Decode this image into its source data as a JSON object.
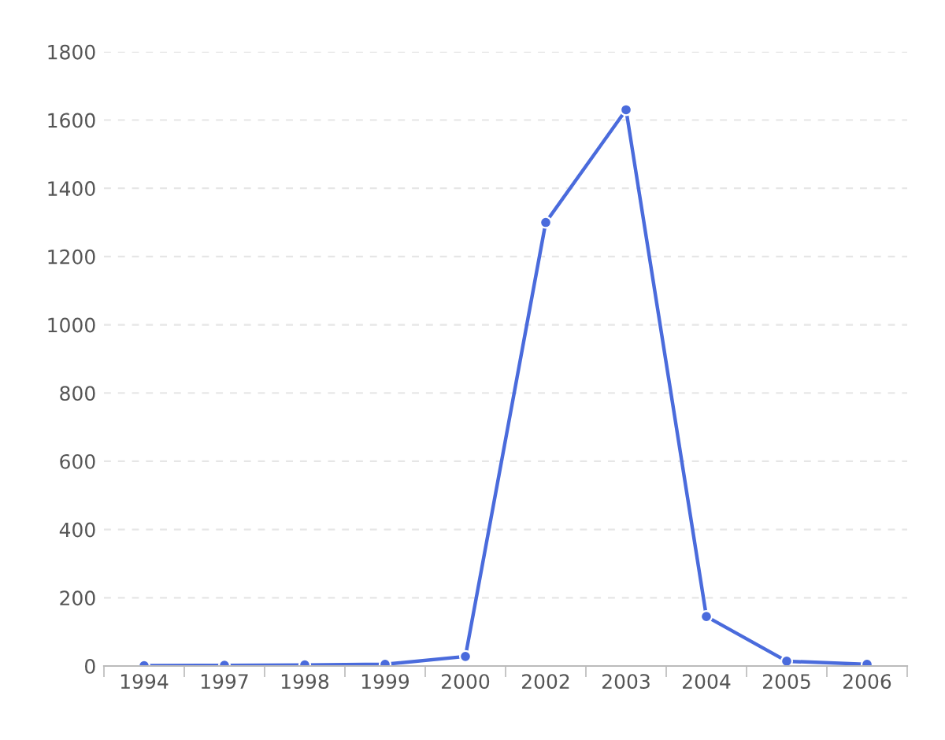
{
  "chart_data": {
    "type": "line",
    "categories": [
      "1994",
      "1997",
      "1998",
      "1999",
      "2000",
      "2002",
      "2003",
      "2004",
      "2005",
      "2006"
    ],
    "series": [
      {
        "color": "#4a6bdc",
        "values": [
          1,
          2,
          3,
          5,
          28,
          1300,
          1630,
          145,
          14,
          5
        ]
      }
    ],
    "ylim": [
      0,
      1800
    ],
    "yticks": [
      0,
      200,
      400,
      600,
      800,
      1000,
      1200,
      1400,
      1600,
      1800
    ],
    "grid": "y",
    "marker": "circle",
    "line_style": "solid",
    "legend": false
  }
}
